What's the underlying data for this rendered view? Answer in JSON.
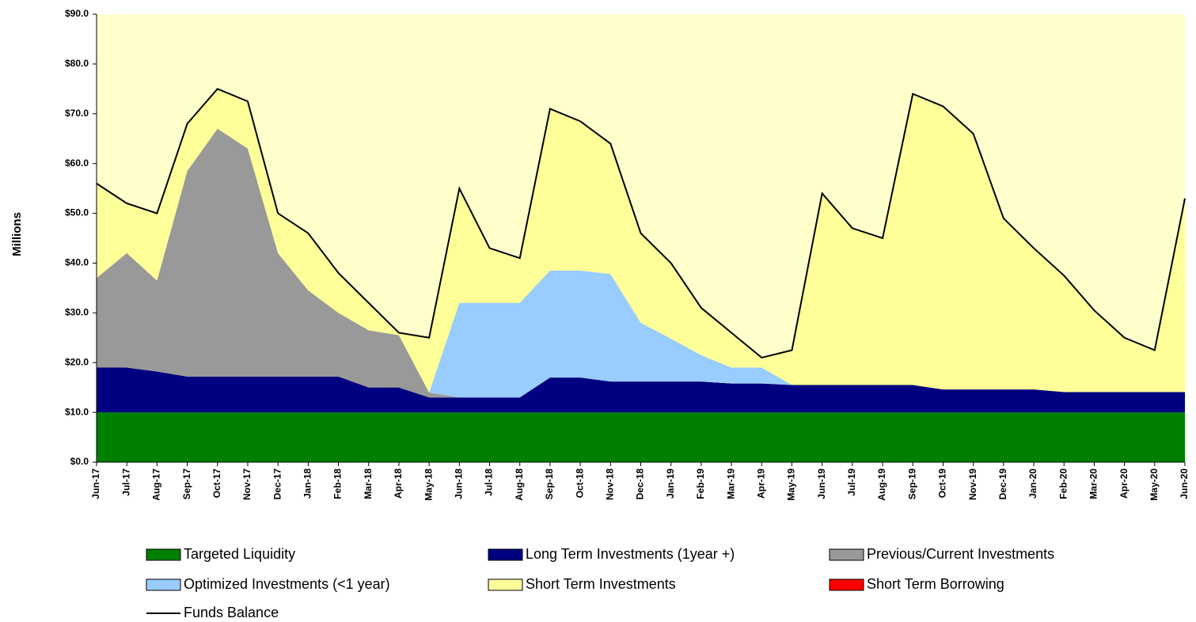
{
  "chart_data": {
    "type": "area",
    "y_axis_label": "Millions",
    "categories": [
      "Jun-17",
      "Jul-17",
      "Aug-17",
      "Sep-17",
      "Oct-17",
      "Nov-17",
      "Dec-17",
      "Jan-18",
      "Feb-18",
      "Mar-18",
      "Apr-18",
      "May-18",
      "Jun-18",
      "Jul-18",
      "Aug-18",
      "Sep-18",
      "Oct-18",
      "Nov-18",
      "Dec-18",
      "Jan-19",
      "Feb-19",
      "Mar-19",
      "Apr-19",
      "May-19",
      "Jun-19",
      "Jul-19",
      "Aug-19",
      "Sep-19",
      "Oct-19",
      "Nov-19",
      "Dec-19",
      "Jan-20",
      "Feb-20",
      "Mar-20",
      "Apr-20",
      "May-20",
      "Jun-20"
    ],
    "ylim": [
      0,
      90
    ],
    "yticks": [
      {
        "value": 0,
        "label": "$0.0"
      },
      {
        "value": 10,
        "label": "$10.0"
      },
      {
        "value": 20,
        "label": "$20.0"
      },
      {
        "value": 30,
        "label": "$30.0"
      },
      {
        "value": 40,
        "label": "$40.0"
      },
      {
        "value": 50,
        "label": "$50.0"
      },
      {
        "value": 60,
        "label": "$60.0"
      },
      {
        "value": 70,
        "label": "$70.0"
      },
      {
        "value": 80,
        "label": "$80.0"
      },
      {
        "value": 90,
        "label": "$90.0"
      }
    ],
    "plot_background": "#ffffcc",
    "series": [
      {
        "name": "Targeted Liquidity",
        "color": "#008000",
        "values": [
          10,
          10,
          10,
          10,
          10,
          10,
          10,
          10,
          10,
          10,
          10,
          10,
          10,
          10,
          10,
          10,
          10,
          10,
          10,
          10,
          10,
          10,
          10,
          10,
          10,
          10,
          10,
          10,
          10,
          10,
          10,
          10,
          10,
          10,
          10,
          10,
          10
        ]
      },
      {
        "name": "Long Term Investments (1year +)",
        "color": "#000080",
        "values": [
          9,
          9,
          8.2,
          7.2,
          7.2,
          7.2,
          7.2,
          7.2,
          7.2,
          5,
          5,
          3,
          3,
          3,
          3,
          7,
          7,
          6.2,
          6.2,
          6.2,
          6.2,
          5.8,
          5.8,
          5.5,
          5.5,
          5.5,
          5.5,
          5.5,
          4.6,
          4.6,
          4.6,
          4.6,
          4.1,
          4.1,
          4.1,
          4.1,
          4.1
        ]
      },
      {
        "name": "Previous/Current Investments",
        "color": "#999999",
        "values": [
          18,
          23,
          18.3,
          41.3,
          49.8,
          45.8,
          24.8,
          17.3,
          12.8,
          11.5,
          10.5,
          1,
          0,
          0,
          0,
          0,
          0,
          0,
          0,
          0,
          0,
          0,
          0,
          0,
          0,
          0,
          0,
          0,
          0,
          0,
          0,
          0,
          0,
          0,
          0,
          0,
          0
        ]
      },
      {
        "name": "Optimized Investments (<1 year)",
        "color": "#99ccff",
        "values": [
          0,
          0,
          0,
          0,
          0,
          0,
          0,
          0,
          0,
          0,
          0,
          0,
          19,
          19,
          19,
          21.5,
          21.5,
          21.6,
          11.8,
          8.6,
          5.3,
          3.2,
          3.2,
          0,
          0,
          0,
          0,
          0,
          0,
          0,
          0,
          0,
          0,
          0,
          0,
          0,
          0
        ]
      },
      {
        "name": "Short Term Investments",
        "color": "#ffff99",
        "values": [
          19,
          10,
          13.5,
          9.5,
          8,
          9.5,
          8,
          11.5,
          8,
          5.5,
          0.5,
          11,
          23,
          11,
          9,
          32.5,
          30,
          26.2,
          18,
          15.2,
          9.5,
          7,
          2,
          7,
          38.5,
          31.5,
          29.5,
          58.5,
          56.9,
          51.4,
          34.4,
          28.4,
          23.4,
          16.4,
          10.9,
          8.4,
          38.9
        ]
      },
      {
        "name": "Short Term Borrowing",
        "color": "#ff0000",
        "values": [
          0,
          0,
          0,
          0,
          0,
          0,
          0,
          0,
          0,
          0,
          0,
          0,
          0,
          0,
          0,
          0,
          0,
          0,
          0,
          0,
          0,
          0,
          0,
          0,
          0,
          0,
          0,
          0,
          0,
          0,
          0,
          0,
          0,
          0,
          0,
          0,
          0
        ]
      },
      {
        "name": "Funds Balance",
        "color": "#000000",
        "type": "line",
        "values": [
          56,
          52,
          50,
          68,
          75,
          72.5,
          50,
          46,
          38,
          32,
          26,
          25,
          55,
          43,
          41,
          71,
          68.5,
          64,
          46,
          40,
          31,
          26,
          21,
          22.5,
          54,
          47,
          45,
          74,
          71.5,
          66,
          49,
          43,
          37.5,
          30.5,
          25,
          22.5,
          53
        ]
      }
    ]
  }
}
